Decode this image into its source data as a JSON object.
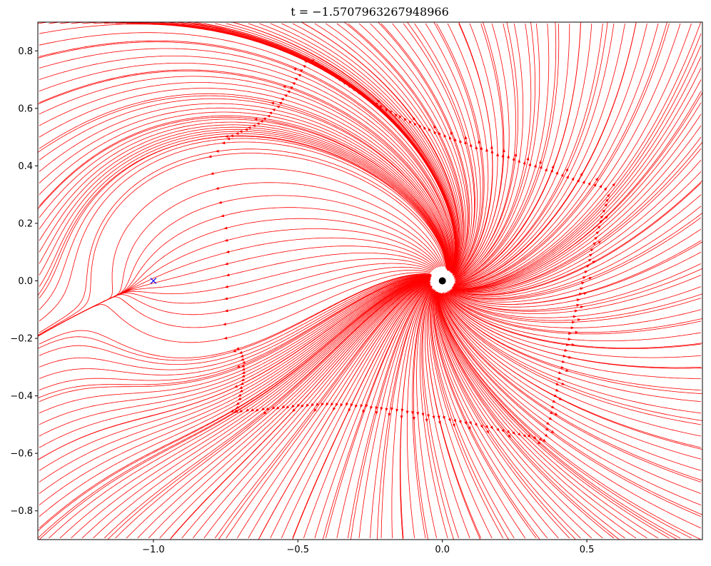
{
  "chart_data": {
    "type": "streamplot",
    "title": "$t = -1.5707963267948966$",
    "title_display": "t = −1.5707963267948966",
    "xlabel": "",
    "ylabel": "",
    "xlim": [
      -1.4,
      0.9
    ],
    "ylim": [
      -0.9,
      0.9
    ],
    "x_ticks": [
      -1.0,
      -0.5,
      0.0,
      0.5
    ],
    "x_tick_labels": [
      "−1.0",
      "−0.5",
      "0.0",
      "0.5"
    ],
    "y_ticks": [
      -0.8,
      -0.6,
      -0.4,
      -0.2,
      0.0,
      0.2,
      0.4,
      0.6,
      0.8
    ],
    "y_tick_labels": [
      "−0.8",
      "−0.6",
      "−0.4",
      "−0.2",
      "0.0",
      "0.2",
      "0.4",
      "0.6",
      "0.8"
    ],
    "grid": false,
    "stream_color": "#ff0000",
    "field": {
      "description_type": "radial source with circulation",
      "source_point": [
        0.0,
        0.0
      ],
      "source_strength": 1.0,
      "rotation_strength": 0.35
    },
    "markers": [
      {
        "name": "origin",
        "x": 0.0,
        "y": 0.0,
        "shape": "filled-circle",
        "color": "#000000"
      },
      {
        "name": "target",
        "x": -1.0,
        "y": 0.0,
        "shape": "x",
        "color": "#0000ff"
      }
    ]
  }
}
